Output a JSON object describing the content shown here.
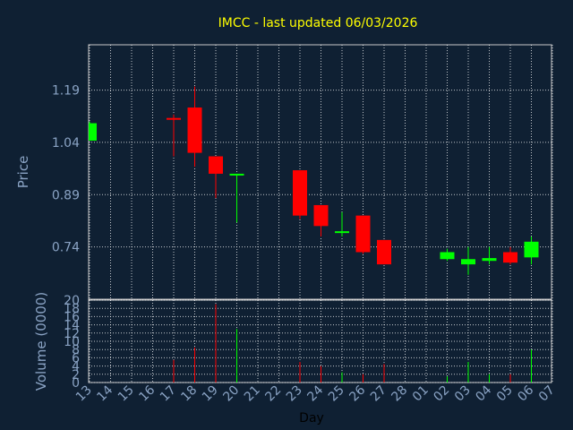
{
  "chart_data": {
    "type": "candlestick",
    "title": "IMCC - last updated 06/03/2026",
    "xlabel": "Day",
    "price_panel": {
      "ylabel": "Price",
      "yticks": [
        "1.19",
        "1.04",
        "0.89",
        "0.74"
      ],
      "ylim": [
        0.59,
        1.32
      ]
    },
    "volume_panel": {
      "ylabel": "Volume (0000)",
      "yticks": [
        "20",
        "18",
        "16",
        "14",
        "12",
        "10",
        "8",
        "6",
        "4",
        "2",
        "0"
      ],
      "ylim": [
        0,
        20
      ]
    },
    "days": [
      "13",
      "14",
      "15",
      "16",
      "17",
      "18",
      "19",
      "20",
      "21",
      "22",
      "23",
      "24",
      "25",
      "26",
      "27",
      "28",
      "01",
      "02",
      "03",
      "04",
      "05",
      "06",
      "07"
    ],
    "colors": {
      "up": "#00ff00",
      "down": "#ff0000",
      "title": "#ffff00",
      "text": "#8aa3c4",
      "background": "#0f2033"
    },
    "candles": [
      {
        "day": "13",
        "open": 1.045,
        "high": 1.1,
        "low": 1.045,
        "close": 1.095,
        "volume": 0
      },
      {
        "day": "17",
        "open": 1.11,
        "high": 1.12,
        "low": 1.0,
        "close": 1.105,
        "volume": 5.5
      },
      {
        "day": "18",
        "open": 1.14,
        "high": 1.2,
        "low": 0.97,
        "close": 1.01,
        "volume": 8.5
      },
      {
        "day": "19",
        "open": 1.0,
        "high": 1.0,
        "low": 0.88,
        "close": 0.95,
        "volume": 19
      },
      {
        "day": "20",
        "open": 0.945,
        "high": 0.95,
        "low": 0.81,
        "close": 0.95,
        "volume": 13
      },
      {
        "day": "23",
        "open": 0.96,
        "high": 0.96,
        "low": 0.82,
        "close": 0.83,
        "volume": 5
      },
      {
        "day": "24",
        "open": 0.86,
        "high": 0.86,
        "low": 0.77,
        "close": 0.8,
        "volume": 4
      },
      {
        "day": "25",
        "open": 0.78,
        "high": 0.84,
        "low": 0.77,
        "close": 0.785,
        "volume": 2.5
      },
      {
        "day": "26",
        "open": 0.83,
        "high": 0.83,
        "low": 0.72,
        "close": 0.725,
        "volume": 2
      },
      {
        "day": "27",
        "open": 0.76,
        "high": 0.76,
        "low": 0.69,
        "close": 0.69,
        "volume": 4.5
      },
      {
        "day": "02",
        "open": 0.705,
        "high": 0.735,
        "low": 0.7,
        "close": 0.725,
        "volume": 1.5
      },
      {
        "day": "03",
        "open": 0.69,
        "high": 0.74,
        "low": 0.66,
        "close": 0.705,
        "volume": 5
      },
      {
        "day": "04",
        "open": 0.7,
        "high": 0.74,
        "low": 0.69,
        "close": 0.708,
        "volume": 2
      },
      {
        "day": "05",
        "open": 0.725,
        "high": 0.74,
        "low": 0.69,
        "close": 0.695,
        "volume": 2
      },
      {
        "day": "06",
        "open": 0.71,
        "high": 0.77,
        "low": 0.69,
        "close": 0.755,
        "volume": 8
      }
    ]
  }
}
